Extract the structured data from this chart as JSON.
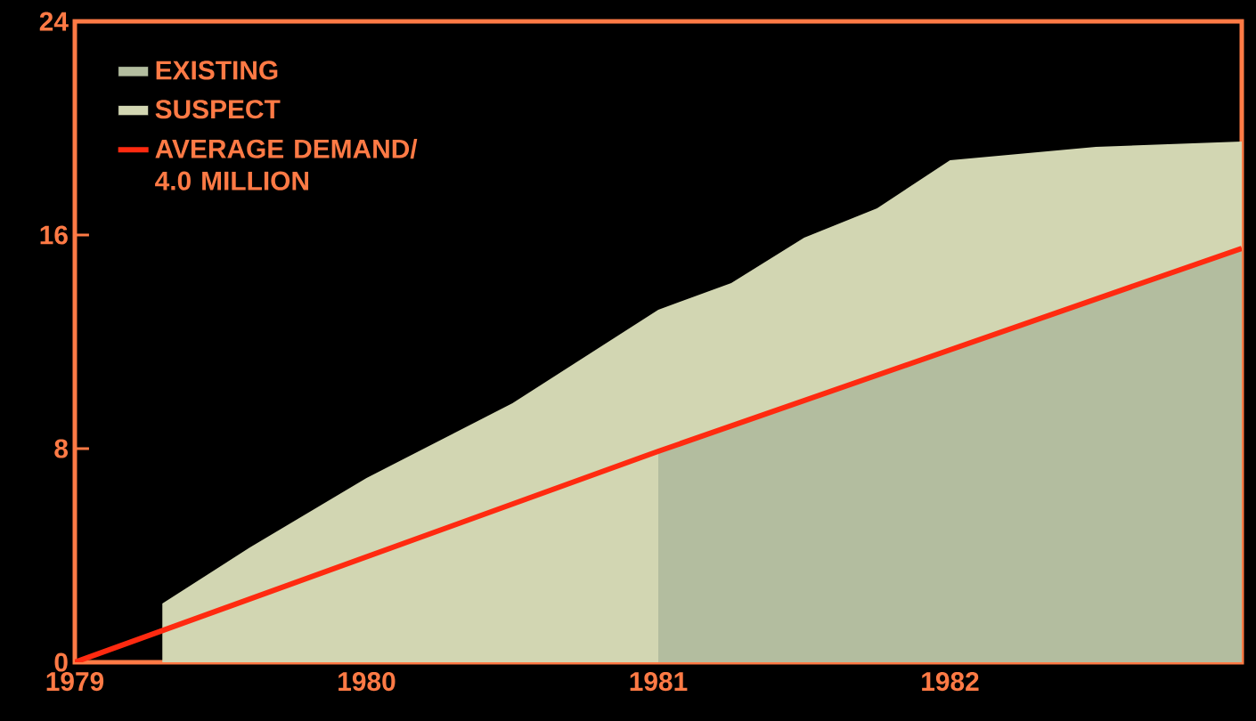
{
  "chart_data": {
    "type": "area",
    "xlim": [
      1979,
      1983
    ],
    "ylim": [
      0,
      24
    ],
    "xticks": [
      1979,
      1980,
      1981,
      1982
    ],
    "yticks": [
      0,
      8,
      16,
      24
    ],
    "grid": false,
    "legend": "top left",
    "series": [
      {
        "name": "EXISTING",
        "color": "#b3bd9f",
        "x": [
          1981,
          1982,
          1983
        ],
        "values": [
          7.9,
          11.7,
          15.5
        ]
      },
      {
        "name": "SUSPECT",
        "color": "#d2d6b2",
        "x": [
          1979.3,
          1979.6,
          1980,
          1980.5,
          1981,
          1981.25,
          1981.5,
          1981.75,
          1982,
          1982.5,
          1983
        ],
        "values": [
          2.2,
          4.3,
          6.9,
          9.7,
          13.2,
          14.2,
          15.9,
          17,
          18.8,
          19.3,
          19.5
        ]
      },
      {
        "name": "AVERAGE DEMAND/ 4.0 MILLION",
        "type": "line",
        "color": "#ff2a10",
        "x": [
          1979,
          1981,
          1982,
          1983
        ],
        "values": [
          0,
          7.9,
          11.7,
          15.5
        ]
      }
    ]
  }
}
